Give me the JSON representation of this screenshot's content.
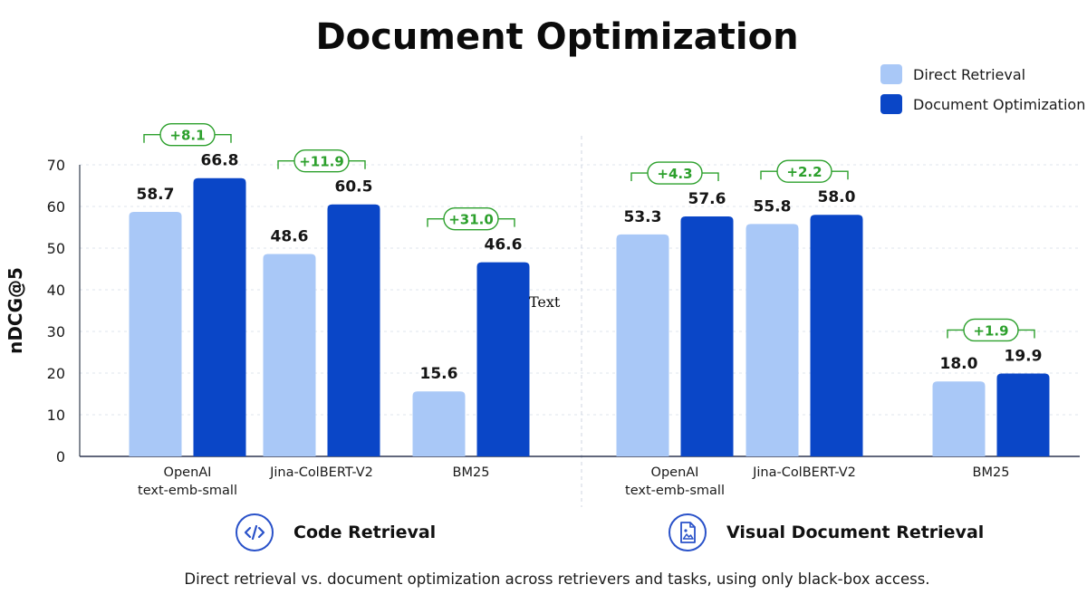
{
  "title": "Document Optimization",
  "legend": [
    {
      "label": "Direct Retrieval",
      "color": "#a9c8f7"
    },
    {
      "label": "Document Optimization",
      "color": "#0a46c7"
    }
  ],
  "groups": [
    {
      "label": "Code Retrieval",
      "icon": "code-icon"
    },
    {
      "label": "Visual Document Retrieval",
      "icon": "image-document-icon"
    }
  ],
  "caption": "Direct retrieval vs. document optimization across retrievers and tasks, using only black-box access.",
  "stray_text": "Text",
  "chart_data": {
    "type": "bar",
    "ylabel": "nDCG@5",
    "ylim": [
      0,
      70
    ],
    "yticks": [
      0,
      10,
      20,
      30,
      40,
      50,
      60,
      70
    ],
    "grid": true,
    "legend_position": "top-right",
    "categories": [
      "OpenAI\ntext-emb-small",
      "Jina-ColBERT-V2",
      "BM25",
      "OpenAI\ntext-emb-small",
      "Jina-ColBERT-V2",
      "BM25"
    ],
    "series": [
      {
        "name": "Direct Retrieval",
        "color": "#a9c8f7",
        "values": [
          58.7,
          48.6,
          15.6,
          53.3,
          55.8,
          18.0
        ]
      },
      {
        "name": "Document Optimization",
        "color": "#0a46c7",
        "values": [
          66.8,
          60.5,
          46.6,
          57.6,
          58.0,
          19.9
        ]
      }
    ],
    "value_labels": [
      [
        "58.7",
        "48.6",
        "15.6",
        "53.3",
        "55.8",
        "18.0"
      ],
      [
        "66.8",
        "60.5",
        "46.6",
        "57.6",
        "58.0",
        "19.9"
      ]
    ],
    "gain_labels": [
      "+8.1",
      "+11.9",
      "+31.0",
      "+4.3",
      "+2.2",
      "+1.9"
    ],
    "gain_color": "#2ca02c"
  }
}
